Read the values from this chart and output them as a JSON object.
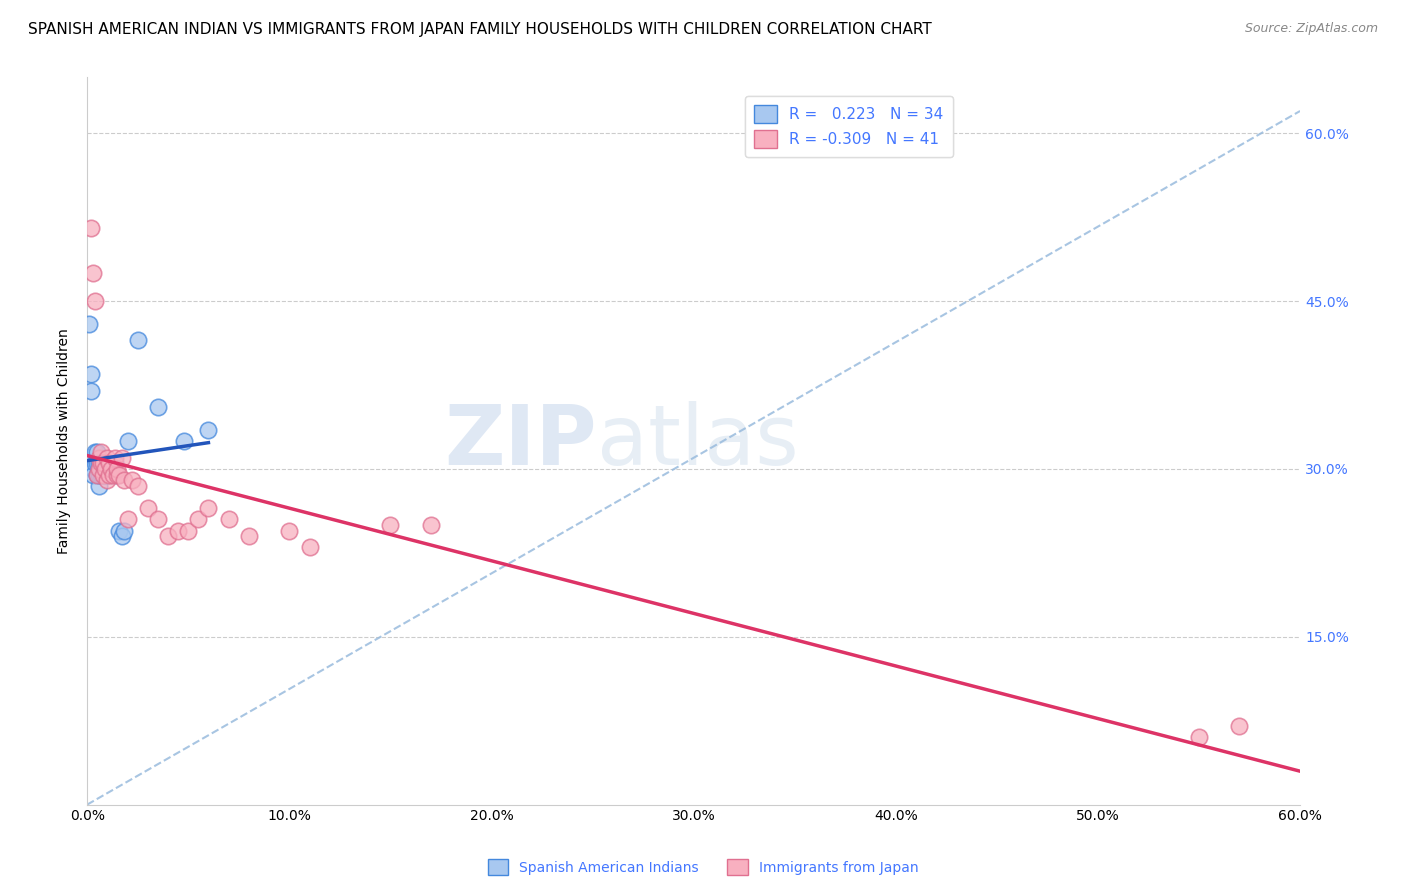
{
  "title": "SPANISH AMERICAN INDIAN VS IMMIGRANTS FROM JAPAN FAMILY HOUSEHOLDS WITH CHILDREN CORRELATION CHART",
  "source": "Source: ZipAtlas.com",
  "ylabel": "Family Households with Children",
  "xlim": [
    0.0,
    0.6
  ],
  "ylim": [
    0.0,
    0.65
  ],
  "xticks": [
    0.0,
    0.1,
    0.2,
    0.3,
    0.4,
    0.5,
    0.6
  ],
  "xticklabels": [
    "0.0%",
    "10.0%",
    "20.0%",
    "30.0%",
    "40.0%",
    "50.0%",
    "60.0%"
  ],
  "yticks_right": [
    0.15,
    0.3,
    0.45,
    0.6
  ],
  "ytick_labels_right": [
    "15.0%",
    "30.0%",
    "45.0%",
    "60.0%"
  ],
  "grid_color": "#cccccc",
  "background_color": "#ffffff",
  "blue_color": "#a8c8f0",
  "blue_edge_color": "#4488dd",
  "blue_line_color": "#2255bb",
  "pink_color": "#f8b0c0",
  "pink_edge_color": "#e07090",
  "pink_line_color": "#dd3366",
  "dashed_line_color": "#99bbdd",
  "watermark_zip": "ZIP",
  "watermark_atlas": "atlas",
  "r_blue": 0.223,
  "n_blue": 34,
  "r_pink": -0.309,
  "n_pink": 41,
  "legend_label_blue": "Spanish American Indians",
  "legend_label_pink": "Immigrants from Japan",
  "blue_scatter_x": [
    0.001,
    0.002,
    0.002,
    0.003,
    0.003,
    0.004,
    0.004,
    0.005,
    0.005,
    0.005,
    0.006,
    0.006,
    0.006,
    0.007,
    0.007,
    0.008,
    0.008,
    0.009,
    0.009,
    0.01,
    0.01,
    0.011,
    0.012,
    0.013,
    0.014,
    0.015,
    0.016,
    0.017,
    0.018,
    0.02,
    0.025,
    0.035,
    0.048,
    0.06
  ],
  "blue_scatter_y": [
    0.43,
    0.385,
    0.37,
    0.3,
    0.295,
    0.305,
    0.315,
    0.295,
    0.305,
    0.315,
    0.285,
    0.295,
    0.305,
    0.295,
    0.3,
    0.295,
    0.302,
    0.295,
    0.3,
    0.295,
    0.305,
    0.3,
    0.295,
    0.3,
    0.305,
    0.295,
    0.245,
    0.24,
    0.245,
    0.325,
    0.415,
    0.355,
    0.325,
    0.335
  ],
  "pink_scatter_x": [
    0.002,
    0.003,
    0.004,
    0.005,
    0.006,
    0.006,
    0.007,
    0.007,
    0.008,
    0.008,
    0.009,
    0.01,
    0.01,
    0.011,
    0.011,
    0.012,
    0.013,
    0.014,
    0.015,
    0.015,
    0.016,
    0.017,
    0.018,
    0.02,
    0.022,
    0.025,
    0.03,
    0.035,
    0.04,
    0.045,
    0.05,
    0.055,
    0.06,
    0.07,
    0.08,
    0.1,
    0.11,
    0.15,
    0.17,
    0.55,
    0.57
  ],
  "pink_scatter_y": [
    0.515,
    0.475,
    0.45,
    0.295,
    0.3,
    0.31,
    0.305,
    0.315,
    0.295,
    0.305,
    0.3,
    0.29,
    0.31,
    0.295,
    0.305,
    0.3,
    0.295,
    0.31,
    0.295,
    0.3,
    0.295,
    0.31,
    0.29,
    0.255,
    0.29,
    0.285,
    0.265,
    0.255,
    0.24,
    0.245,
    0.245,
    0.255,
    0.265,
    0.255,
    0.24,
    0.245,
    0.23,
    0.25,
    0.25,
    0.06,
    0.07
  ],
  "title_fontsize": 11,
  "axis_label_fontsize": 10,
  "tick_fontsize": 10,
  "right_tick_color": "#4477ff",
  "legend_text_color": "#4477ff"
}
